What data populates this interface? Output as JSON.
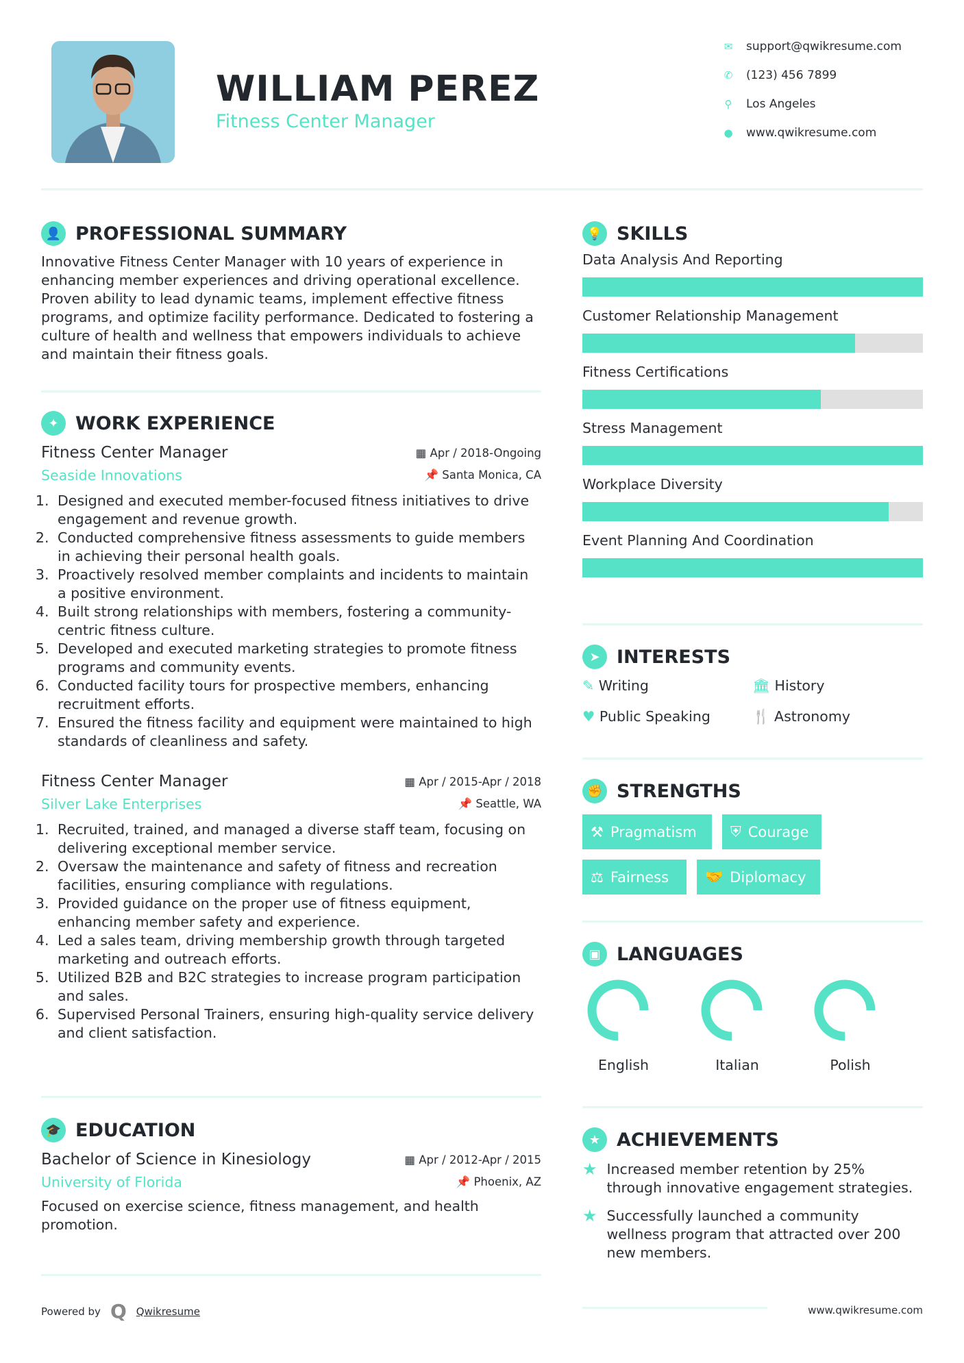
{
  "header": {
    "name": "WILLIAM PEREZ",
    "title": "Fitness Center Manager",
    "contacts": [
      {
        "icon": "envelope-icon",
        "text": "support@qwikresume.com"
      },
      {
        "icon": "phone-icon",
        "text": "(123) 456 7899"
      },
      {
        "icon": "map-pin-icon",
        "text": "Los Angeles"
      },
      {
        "icon": "globe-icon",
        "text": "www.qwikresume.com"
      }
    ]
  },
  "summary": {
    "heading": "PROFESSIONAL SUMMARY",
    "text": "Innovative Fitness Center Manager with 10 years of experience in enhancing member experiences and driving operational excellence. Proven ability to lead dynamic teams, implement effective fitness programs, and optimize facility performance. Dedicated to fostering a culture of health and wellness that empowers individuals to achieve and maintain their fitness goals."
  },
  "work": {
    "heading": "WORK EXPERIENCE",
    "jobs": [
      {
        "title": "Fitness Center Manager",
        "date": "Apr / 2018-Ongoing",
        "company": "Seaside Innovations",
        "location": "Santa Monica, CA",
        "bullets": [
          "Designed and executed member-focused fitness initiatives to drive engagement and revenue growth.",
          "Conducted comprehensive fitness assessments to guide members in achieving their personal health goals.",
          "Proactively resolved member complaints and incidents to maintain a positive environment.",
          "Built strong relationships with members, fostering a community-centric fitness culture.",
          "Developed and executed marketing strategies to promote fitness programs and community events.",
          "Conducted facility tours for prospective members, enhancing recruitment efforts.",
          "Ensured the fitness facility and equipment were maintained to high standards of cleanliness and safety."
        ]
      },
      {
        "title": "Fitness Center Manager",
        "date": "Apr / 2015-Apr / 2018",
        "company": "Silver Lake Enterprises",
        "location": "Seattle, WA",
        "bullets": [
          "Recruited, trained, and managed a diverse staff team, focusing on delivering exceptional member service.",
          "Oversaw the maintenance and safety of fitness and recreation facilities, ensuring compliance with regulations.",
          "Provided guidance on the proper use of fitness equipment, enhancing member safety and experience.",
          "Led a sales team, driving membership growth through targeted marketing and outreach efforts.",
          "Utilized B2B and B2C strategies to increase program participation and sales.",
          "Supervised Personal Trainers, ensuring high-quality service delivery and client satisfaction."
        ]
      }
    ]
  },
  "education": {
    "heading": "EDUCATION",
    "degree": "Bachelor of Science in Kinesiology",
    "date": "Apr / 2012-Apr / 2015",
    "school": "University of Florida",
    "location": "Phoenix, AZ",
    "text": "Focused on exercise science, fitness management, and health promotion."
  },
  "skills": {
    "heading": "SKILLS",
    "items": [
      {
        "name": "Data Analysis And Reporting",
        "level": 100
      },
      {
        "name": "Customer Relationship Management",
        "level": 80
      },
      {
        "name": "Fitness Certifications",
        "level": 70
      },
      {
        "name": "Stress Management",
        "level": 100
      },
      {
        "name": "Workplace Diversity",
        "level": 90
      },
      {
        "name": "Event Planning And Coordination",
        "level": 100
      }
    ]
  },
  "interests": {
    "heading": "INTERESTS",
    "items": [
      {
        "icon": "pencil-icon",
        "label": "Writing"
      },
      {
        "icon": "museum-icon",
        "label": "History"
      },
      {
        "icon": "heartbeat-icon",
        "label": "Public Speaking"
      },
      {
        "icon": "utensils-icon",
        "label": "Astronomy"
      }
    ]
  },
  "strengths": {
    "heading": "STRENGTHS",
    "items": [
      {
        "icon": "gavel-icon",
        "label": "Pragmatism"
      },
      {
        "icon": "shield-icon",
        "label": "Courage"
      },
      {
        "icon": "scale-icon",
        "label": "Fairness"
      },
      {
        "icon": "handshake-icon",
        "label": "Diplomacy"
      }
    ]
  },
  "languages": {
    "heading": "LANGUAGES",
    "items": [
      {
        "name": "English",
        "level": 75
      },
      {
        "name": "Italian",
        "level": 75
      },
      {
        "name": "Polish",
        "level": 75
      }
    ]
  },
  "achievements": {
    "heading": "ACHIEVEMENTS",
    "items": [
      "Increased member retention by 25% through innovative engagement strategies.",
      "Successfully launched a community wellness program that attracted over 200 new members."
    ]
  },
  "footer": {
    "powered_by": "Powered by",
    "brand": "Qwikresume",
    "website": "www.qwikresume.com"
  },
  "colors": {
    "accent": "#55e2c6",
    "text": "#2b2f36"
  }
}
